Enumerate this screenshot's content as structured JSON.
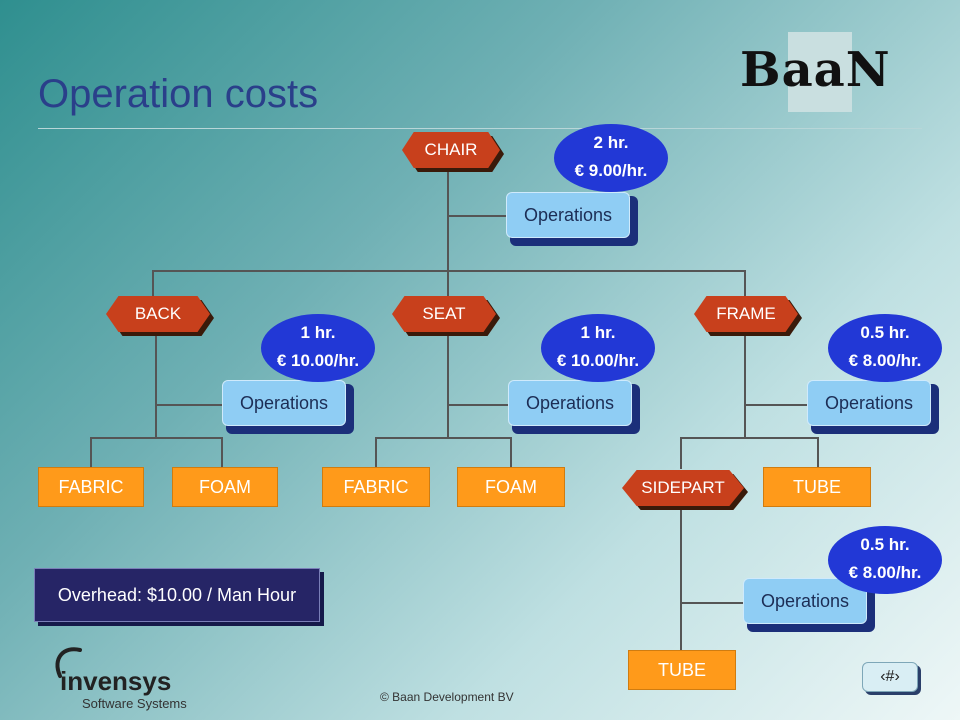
{
  "slide": {
    "title": "Operation costs",
    "logo_text": "BaaN",
    "footer": "© Baan Development BV",
    "page_marker": "‹#›"
  },
  "nodes": {
    "chair": "CHAIR",
    "back": "BACK",
    "seat": "SEAT",
    "frame": "FRAME",
    "sidepart": "SIDEPART"
  },
  "operations_label": "Operations",
  "costs": {
    "chair": {
      "hours": "2 hr.",
      "rate": "€ 9.00/hr."
    },
    "back": {
      "hours": "1 hr.",
      "rate": "€ 10.00/hr."
    },
    "seat": {
      "hours": "1 hr.",
      "rate": "€ 10.00/hr."
    },
    "frame": {
      "hours": "0.5 hr.",
      "rate": "€ 8.00/hr."
    },
    "sidepart": {
      "hours": "0.5 hr.",
      "rate": "€ 8.00/hr."
    }
  },
  "parts": {
    "back_fabric": "FABRIC",
    "back_foam": "FOAM",
    "seat_fabric": "FABRIC",
    "seat_foam": "FOAM",
    "frame_tube": "TUBE",
    "sidepart_tube": "TUBE"
  },
  "overhead": "Overhead: $10.00 / Man Hour",
  "invensys": {
    "name": "invensys",
    "sub": "Software Systems"
  },
  "colors": {
    "node_red": "#c8401c",
    "ops_blue": "#8fcdf4",
    "cost_blue": "#2238d6",
    "part_orange": "#ff9a1a",
    "overhead_navy": "#262566",
    "title_blue": "#2a3f8a"
  }
}
